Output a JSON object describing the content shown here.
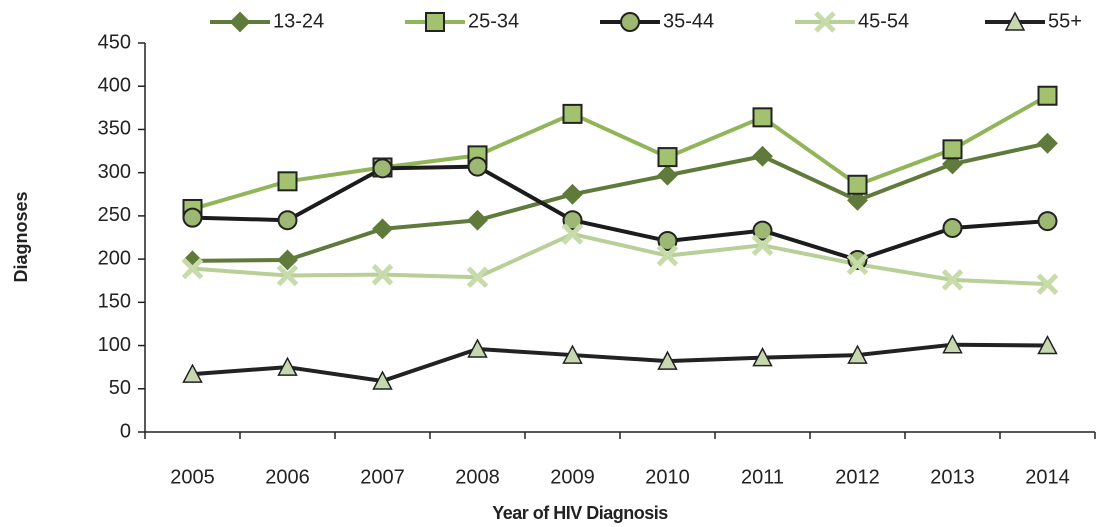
{
  "chart_data": {
    "type": "line",
    "x_label": "Year of HIV Diagnosis",
    "y_label": "Diagnoses",
    "categories": [
      "2005",
      "2006",
      "2007",
      "2008",
      "2009",
      "2010",
      "2011",
      "2012",
      "2013",
      "2014"
    ],
    "series": [
      {
        "name": "13-24",
        "color": "#5f7a3a",
        "marker": "diamond",
        "marker_color": "#5f7a3a",
        "values": [
          198,
          199,
          235,
          245,
          275,
          297,
          319,
          268,
          310,
          334
        ]
      },
      {
        "name": "25-34",
        "color": "#93b55a",
        "marker": "square",
        "marker_color": "#a3c270",
        "values": [
          258,
          290,
          306,
          320,
          368,
          318,
          364,
          286,
          327,
          389
        ]
      },
      {
        "name": "35-44",
        "color": "#1c1c1c",
        "marker": "circle",
        "marker_color": "#9cb872",
        "values": [
          248,
          245,
          305,
          307,
          245,
          221,
          233,
          199,
          236,
          244
        ]
      },
      {
        "name": "45-54",
        "color": "#b9cf98",
        "marker": "cross",
        "marker_color": "#c8dbab",
        "values": [
          189,
          181,
          182,
          179,
          229,
          204,
          216,
          194,
          176,
          171
        ]
      },
      {
        "name": "55+",
        "color": "#222222",
        "marker": "triangle",
        "marker_color": "#c7d8b0",
        "values": [
          67,
          75,
          59,
          96,
          89,
          82,
          86,
          89,
          101,
          100
        ]
      }
    ],
    "ylim": [
      0,
      450
    ],
    "yticks": [
      0,
      50,
      100,
      150,
      200,
      250,
      300,
      350,
      400,
      450
    ],
    "legend": "top"
  }
}
